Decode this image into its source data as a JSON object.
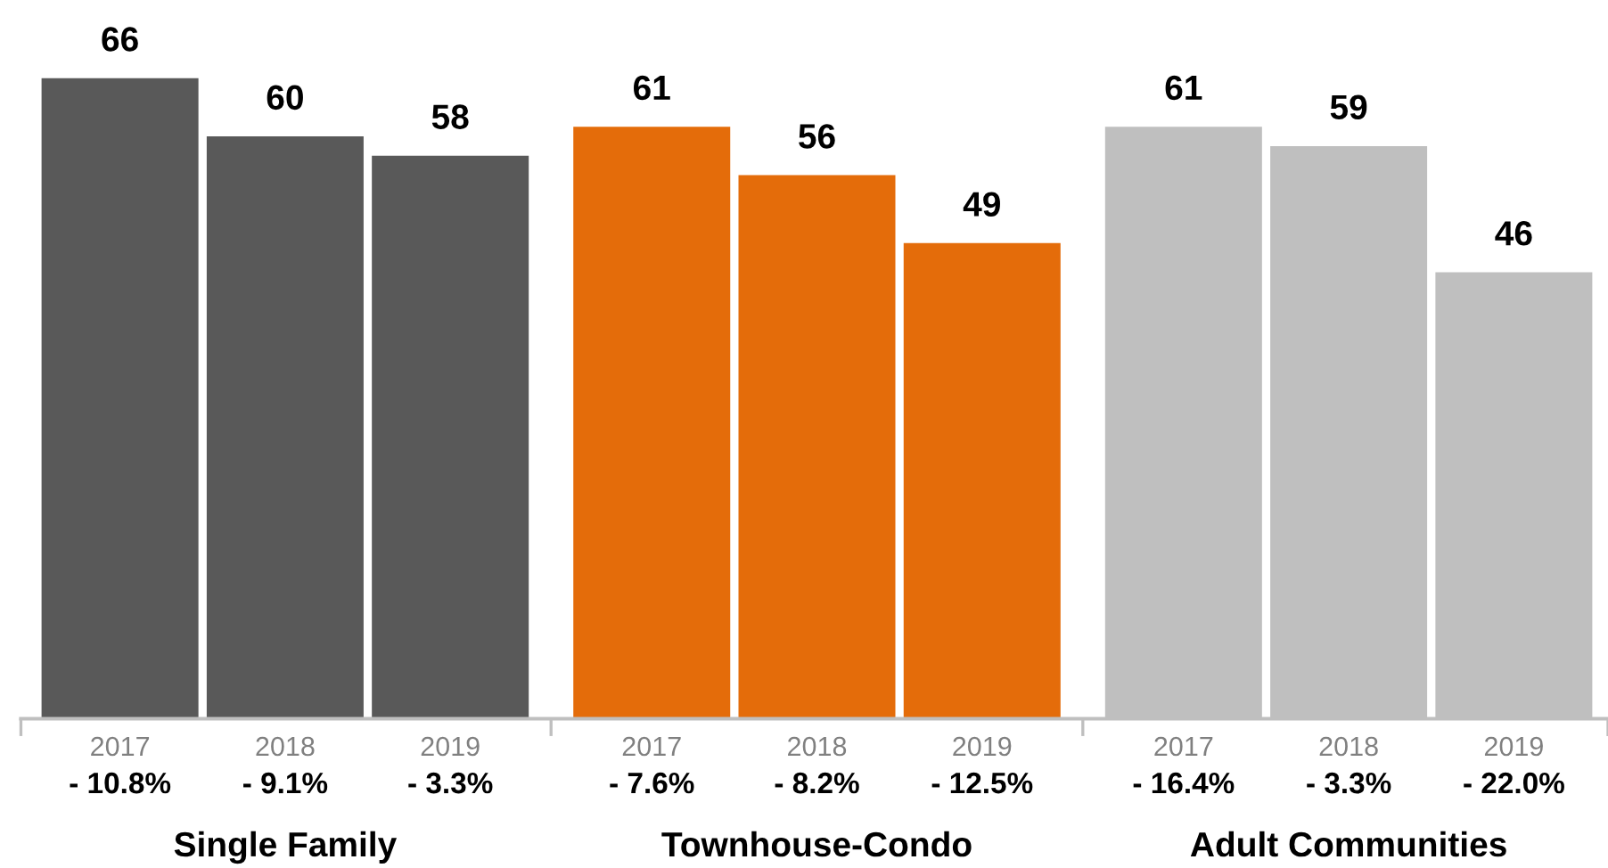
{
  "chart_data": {
    "type": "bar",
    "categories": [
      "2017",
      "2018",
      "2019",
      "2017",
      "2018",
      "2019",
      "2017",
      "2018",
      "2019"
    ],
    "values": [
      66,
      60,
      58,
      61,
      56,
      49,
      61,
      59,
      46
    ],
    "colors": [
      "#595959",
      "#595959",
      "#595959",
      "#e46c0a",
      "#e46c0a",
      "#e46c0a",
      "#bfbfbf",
      "#bfbfbf",
      "#bfbfbf"
    ],
    "data_labels": true,
    "grid": false,
    "legend": false,
    "annotations": [
      "- 10.8%",
      "- 9.1%",
      "- 3.3%",
      "- 7.6%",
      "- 8.2%",
      "- 12.5%",
      "- 16.4%",
      "- 3.3%",
      "- 22.0%",
      "Single Family",
      "Townhouse-Condo",
      "Adult Communities"
    ]
  }
}
